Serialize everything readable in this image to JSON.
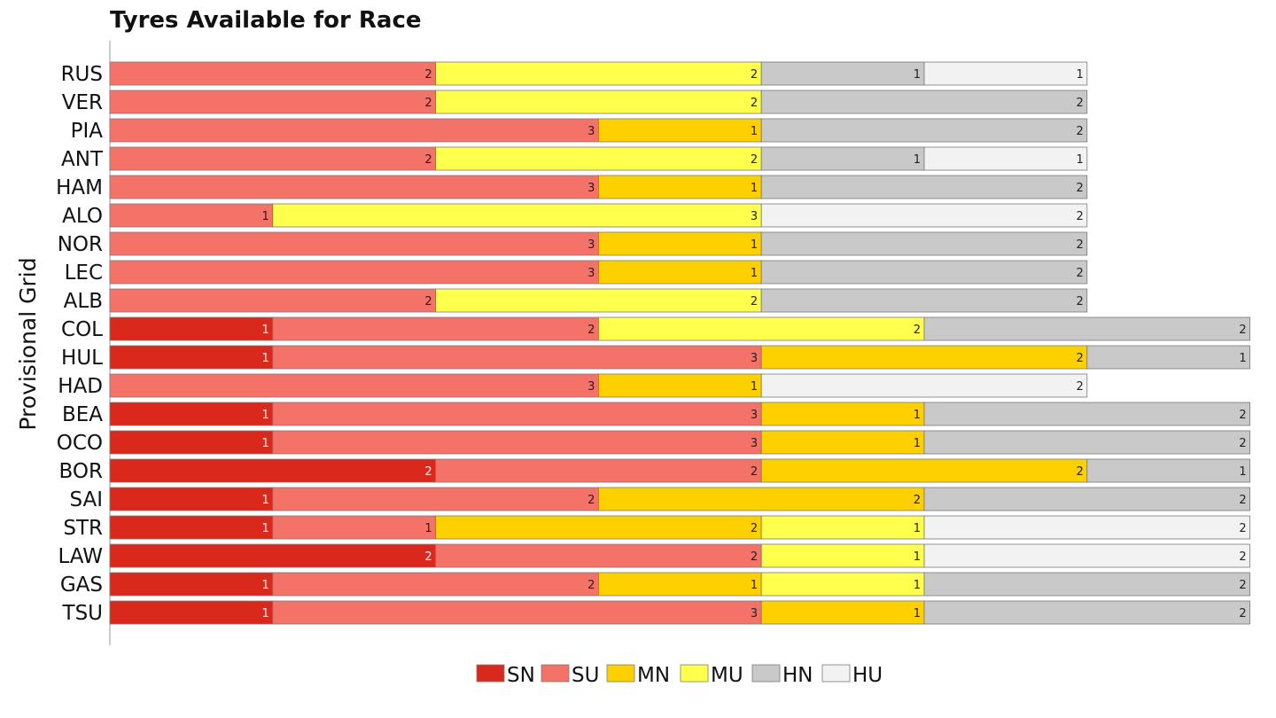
{
  "chart_data": {
    "type": "bar",
    "orientation": "horizontal",
    "stacked": true,
    "title": "Tyres Available for Race",
    "xlabel": "",
    "ylabel": "Provisional Grid",
    "xlim": [
      0,
      7
    ],
    "grid": false,
    "legend_position": "bottom-center",
    "categories": [
      "RUS",
      "VER",
      "PIA",
      "ANT",
      "HAM",
      "ALO",
      "NOR",
      "LEC",
      "ALB",
      "COL",
      "HUL",
      "HAD",
      "BEA",
      "OCO",
      "BOR",
      "SAI",
      "STR",
      "LAW",
      "GAS",
      "TSU"
    ],
    "series": [
      {
        "name": "SN",
        "color": "#da291c",
        "values": [
          0,
          0,
          0,
          0,
          0,
          0,
          0,
          0,
          0,
          1,
          1,
          0,
          1,
          1,
          2,
          1,
          1,
          2,
          1,
          1
        ]
      },
      {
        "name": "SU",
        "color": "#f47268",
        "values": [
          2,
          2,
          3,
          2,
          3,
          1,
          3,
          3,
          2,
          2,
          3,
          3,
          3,
          3,
          2,
          2,
          1,
          2,
          2,
          3
        ]
      },
      {
        "name": "MN",
        "color": "#ffd000",
        "values": [
          0,
          0,
          1,
          0,
          1,
          0,
          1,
          1,
          0,
          0,
          2,
          1,
          1,
          1,
          2,
          2,
          2,
          0,
          1,
          1
        ]
      },
      {
        "name": "MU",
        "color": "#ffff4d",
        "values": [
          2,
          2,
          0,
          2,
          0,
          3,
          0,
          0,
          2,
          2,
          0,
          0,
          0,
          0,
          0,
          0,
          1,
          1,
          1,
          0
        ]
      },
      {
        "name": "HN",
        "color": "#c9c9c9",
        "values": [
          1,
          2,
          2,
          1,
          2,
          0,
          2,
          2,
          2,
          2,
          1,
          0,
          2,
          2,
          1,
          2,
          0,
          0,
          2,
          2
        ]
      },
      {
        "name": "HU",
        "color": "#f2f2f2",
        "values": [
          1,
          0,
          0,
          1,
          0,
          2,
          0,
          0,
          0,
          0,
          0,
          2,
          0,
          0,
          0,
          0,
          2,
          2,
          0,
          0
        ]
      }
    ]
  }
}
